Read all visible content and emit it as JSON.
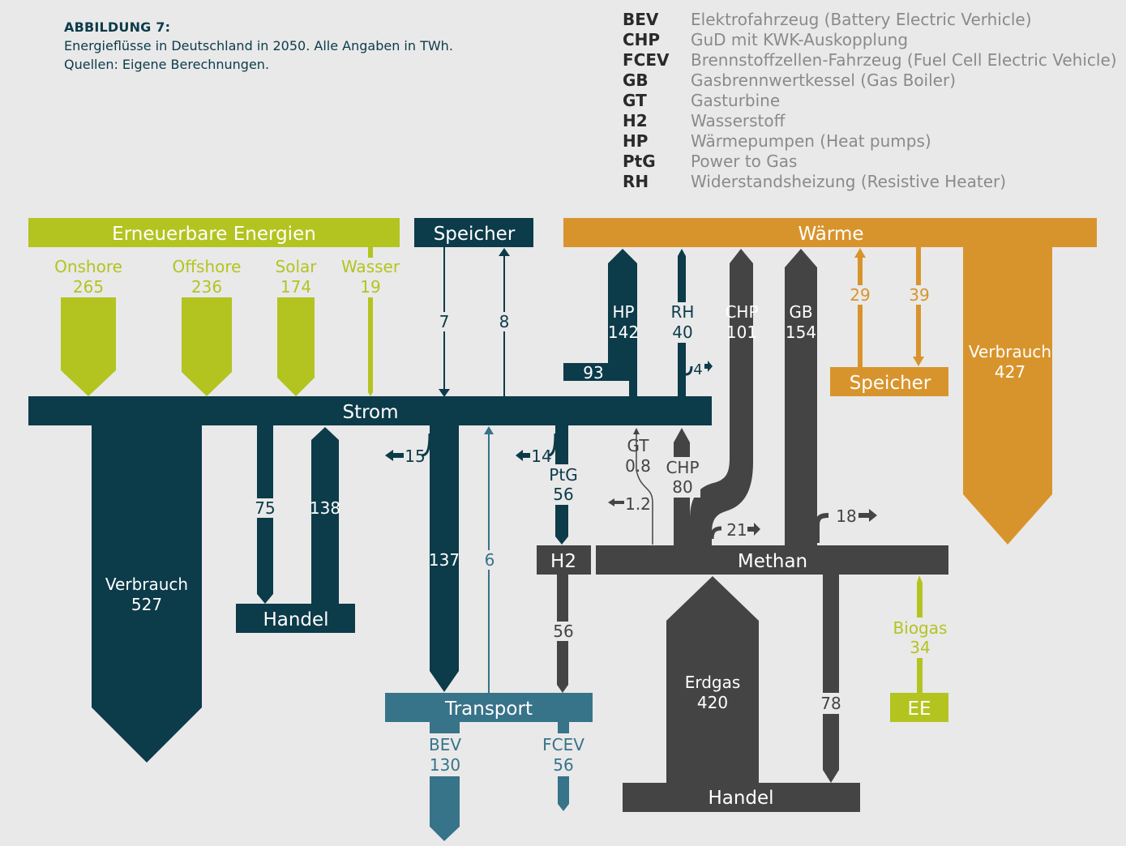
{
  "header": {
    "title": "ABBILDUNG 7:",
    "line1": "Energieflüsse in Deutschland in 2050. Alle Angaben in TWh.",
    "line2": "Quellen: Eigene Berechnungen."
  },
  "legend": [
    {
      "abbr": "BEV",
      "text": "Elektrofahrzeug (Battery Electric Verhicle)"
    },
    {
      "abbr": "CHP",
      "text": "GuD mit KWK-Auskopplung"
    },
    {
      "abbr": "FCEV",
      "text": "Brennstoffzellen-Fahrzeug (Fuel Cell Electric Vehicle)"
    },
    {
      "abbr": "GB",
      "text": "Gasbrennwertkessel (Gas Boiler)"
    },
    {
      "abbr": "GT",
      "text": "Gasturbine"
    },
    {
      "abbr": "H2",
      "text": "Wasserstoff"
    },
    {
      "abbr": "HP",
      "text": "Wärmepumpen (Heat pumps)"
    },
    {
      "abbr": "PtG",
      "text": "Power to Gas"
    },
    {
      "abbr": "RH",
      "text": "Widerstandsheizung (Resistive Heater)"
    }
  ],
  "colors": {
    "renewable": "#b3c420",
    "strom": "#0c3b4a",
    "waerme": "#d8942c",
    "methan": "#444444",
    "transport": "#377389",
    "background": "#e9e9e9"
  },
  "nodes": {
    "erneuerbare": "Erneuerbare Energien",
    "speicher_strom": "Speicher",
    "waerme": "Wärme",
    "speicher_waerme": "Speicher",
    "strom": "Strom",
    "handel_strom": "Handel",
    "h2": "H2",
    "methan": "Methan",
    "transport": "Transport",
    "handel_gas": "Handel",
    "ee": "EE"
  },
  "sources": {
    "onshore": {
      "label": "Onshore",
      "value": "265"
    },
    "offshore": {
      "label": "Offshore",
      "value": "236"
    },
    "solar": {
      "label": "Solar",
      "value": "174"
    },
    "wasser": {
      "label": "Wasser",
      "value": "19"
    }
  },
  "flows": {
    "speicher_in": "7",
    "speicher_out": "8",
    "hp": {
      "label": "HP",
      "value": "142"
    },
    "hp_from_strom": "93",
    "rh": {
      "label": "RH",
      "value": "40"
    },
    "rh_loss": "4",
    "chp_heat": {
      "label": "CHP",
      "value": "101"
    },
    "gb": {
      "label": "GB",
      "value": "154"
    },
    "waerme_to_speicher": "29",
    "speicher_to_waerme": "39",
    "waerme_verbrauch": {
      "label": "Verbrauch",
      "value": "427"
    },
    "strom_verbrauch": {
      "label": "Verbrauch",
      "value": "527"
    },
    "strom_export": "75",
    "strom_import": "138",
    "strom_loss": "15",
    "strom_transport": "137",
    "transport_back": "6",
    "ptg_loss": "14",
    "ptg": {
      "label": "PtG",
      "value": "56"
    },
    "gt": {
      "label": "GT",
      "value": "0.8"
    },
    "gt_loss": "1.2",
    "chp_power": {
      "label": "CHP",
      "value": "80"
    },
    "chp_loss": "21",
    "gb_loss": "18",
    "h2_transport": "56",
    "bev": {
      "label": "BEV",
      "value": "130"
    },
    "fcev": {
      "label": "FCEV",
      "value": "56"
    },
    "erdgas": {
      "label": "Erdgas",
      "value": "420"
    },
    "gas_handel": "78",
    "biogas": {
      "label": "Biogas",
      "value": "34"
    }
  }
}
